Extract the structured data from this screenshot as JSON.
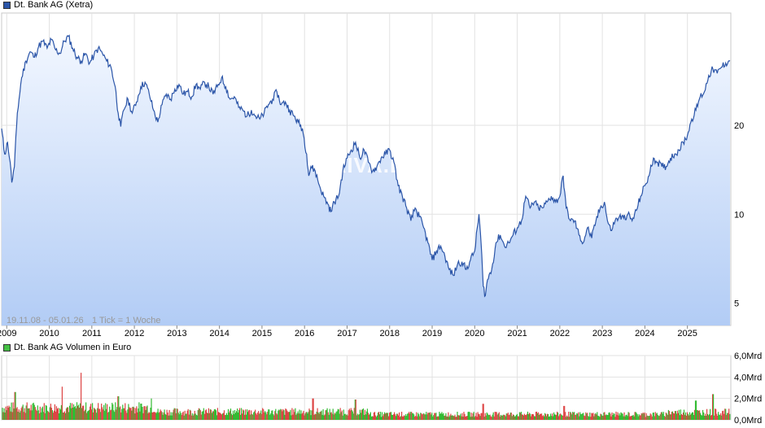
{
  "chart_data": [
    {
      "type": "line",
      "legend_label": "Dt. Bank AG (Xetra)",
      "color": "#2b55a8",
      "fill_top": "#f2f7ff",
      "fill_bottom": "#b2ccf5",
      "scale": "log",
      "ylim": [
        4.2,
        48
      ],
      "y_ticks": [
        {
          "value": 5,
          "label": "5"
        },
        {
          "value": 10,
          "label": "10"
        },
        {
          "value": 20,
          "label": "20"
        }
      ],
      "xlim": [
        2008.88,
        2026.02
      ],
      "x_ticks": [
        "2009",
        "2010",
        "2011",
        "2012",
        "2013",
        "2014",
        "2015",
        "2016",
        "2017",
        "2018",
        "2019",
        "2020",
        "2021",
        "2022",
        "2023",
        "2024",
        "2025"
      ],
      "grid": true,
      "period_note": "19.11.08 - 05.01.26",
      "tick_note": "1 Tick = 1 Woche",
      "watermark": "ARIVA.DE",
      "series": [
        {
          "values": [
            [
              2008.88,
              19.5
            ],
            [
              2008.95,
              16.0
            ],
            [
              2009.02,
              17.5
            ],
            [
              2009.08,
              15.0
            ],
            [
              2009.12,
              12.8
            ],
            [
              2009.18,
              14.5
            ],
            [
              2009.25,
              22.0
            ],
            [
              2009.35,
              29.0
            ],
            [
              2009.45,
              33.0
            ],
            [
              2009.55,
              35.5
            ],
            [
              2009.65,
              34.0
            ],
            [
              2009.75,
              37.0
            ],
            [
              2009.85,
              38.5
            ],
            [
              2009.95,
              36.5
            ],
            [
              2010.05,
              39.0
            ],
            [
              2010.15,
              36.0
            ],
            [
              2010.25,
              35.0
            ],
            [
              2010.35,
              38.5
            ],
            [
              2010.45,
              40.0
            ],
            [
              2010.55,
              36.5
            ],
            [
              2010.65,
              34.0
            ],
            [
              2010.75,
              33.0
            ],
            [
              2010.85,
              35.0
            ],
            [
              2010.95,
              32.5
            ],
            [
              2011.05,
              34.5
            ],
            [
              2011.15,
              36.5
            ],
            [
              2011.25,
              35.0
            ],
            [
              2011.35,
              33.0
            ],
            [
              2011.45,
              31.5
            ],
            [
              2011.55,
              27.0
            ],
            [
              2011.62,
              22.0
            ],
            [
              2011.68,
              19.8
            ],
            [
              2011.75,
              22.5
            ],
            [
              2011.85,
              24.5
            ],
            [
              2011.95,
              22.0
            ],
            [
              2012.05,
              24.0
            ],
            [
              2012.15,
              27.0
            ],
            [
              2012.25,
              28.0
            ],
            [
              2012.35,
              25.5
            ],
            [
              2012.45,
              22.5
            ],
            [
              2012.55,
              20.5
            ],
            [
              2012.65,
              23.5
            ],
            [
              2012.75,
              25.5
            ],
            [
              2012.85,
              24.5
            ],
            [
              2012.95,
              26.5
            ],
            [
              2013.05,
              27.5
            ],
            [
              2013.15,
              25.5
            ],
            [
              2013.25,
              26.0
            ],
            [
              2013.35,
              25.0
            ],
            [
              2013.45,
              27.5
            ],
            [
              2013.55,
              26.5
            ],
            [
              2013.65,
              28.0
            ],
            [
              2013.75,
              27.0
            ],
            [
              2013.85,
              25.5
            ],
            [
              2013.95,
              27.0
            ],
            [
              2014.05,
              29.0
            ],
            [
              2014.15,
              27.0
            ],
            [
              2014.25,
              24.5
            ],
            [
              2014.35,
              25.0
            ],
            [
              2014.45,
              23.0
            ],
            [
              2014.55,
              22.5
            ],
            [
              2014.65,
              21.5
            ],
            [
              2014.75,
              22.5
            ],
            [
              2014.85,
              21.5
            ],
            [
              2014.95,
              21.0
            ],
            [
              2015.05,
              22.0
            ],
            [
              2015.15,
              23.5
            ],
            [
              2015.25,
              24.5
            ],
            [
              2015.35,
              26.0
            ],
            [
              2015.45,
              23.5
            ],
            [
              2015.55,
              24.0
            ],
            [
              2015.65,
              22.5
            ],
            [
              2015.75,
              21.5
            ],
            [
              2015.85,
              20.5
            ],
            [
              2015.95,
              19.5
            ],
            [
              2016.05,
              16.0
            ],
            [
              2016.1,
              13.5
            ],
            [
              2016.15,
              14.5
            ],
            [
              2016.25,
              14.0
            ],
            [
              2016.35,
              12.5
            ],
            [
              2016.45,
              11.5
            ],
            [
              2016.55,
              10.8
            ],
            [
              2016.62,
              10.2
            ],
            [
              2016.7,
              11.0
            ],
            [
              2016.8,
              11.5
            ],
            [
              2016.9,
              14.0
            ],
            [
              2017.0,
              15.5
            ],
            [
              2017.1,
              16.5
            ],
            [
              2017.2,
              17.5
            ],
            [
              2017.3,
              15.5
            ],
            [
              2017.4,
              16.5
            ],
            [
              2017.5,
              15.0
            ],
            [
              2017.6,
              14.0
            ],
            [
              2017.7,
              14.5
            ],
            [
              2017.8,
              15.5
            ],
            [
              2017.9,
              16.0
            ],
            [
              2018.0,
              16.5
            ],
            [
              2018.1,
              15.0
            ],
            [
              2018.2,
              12.5
            ],
            [
              2018.3,
              11.5
            ],
            [
              2018.4,
              10.5
            ],
            [
              2018.5,
              9.5
            ],
            [
              2018.6,
              10.5
            ],
            [
              2018.7,
              9.8
            ],
            [
              2018.8,
              9.0
            ],
            [
              2018.9,
              8.0
            ],
            [
              2019.0,
              7.0
            ],
            [
              2019.1,
              7.5
            ],
            [
              2019.2,
              7.8
            ],
            [
              2019.3,
              7.2
            ],
            [
              2019.4,
              6.5
            ],
            [
              2019.5,
              6.2
            ],
            [
              2019.6,
              6.8
            ],
            [
              2019.7,
              6.9
            ],
            [
              2019.8,
              6.5
            ],
            [
              2019.9,
              7.0
            ],
            [
              2020.0,
              7.5
            ],
            [
              2020.1,
              10.0
            ],
            [
              2020.15,
              8.0
            ],
            [
              2020.2,
              5.7
            ],
            [
              2020.25,
              5.3
            ],
            [
              2020.3,
              6.0
            ],
            [
              2020.4,
              6.5
            ],
            [
              2020.5,
              8.0
            ],
            [
              2020.6,
              8.5
            ],
            [
              2020.7,
              7.8
            ],
            [
              2020.8,
              8.0
            ],
            [
              2020.9,
              8.5
            ],
            [
              2021.0,
              9.0
            ],
            [
              2021.1,
              9.5
            ],
            [
              2021.2,
              11.5
            ],
            [
              2021.3,
              10.5
            ],
            [
              2021.4,
              11.0
            ],
            [
              2021.5,
              10.5
            ],
            [
              2021.6,
              10.5
            ],
            [
              2021.7,
              11.0
            ],
            [
              2021.8,
              11.5
            ],
            [
              2021.9,
              11.0
            ],
            [
              2022.0,
              11.5
            ],
            [
              2022.08,
              13.5
            ],
            [
              2022.15,
              10.5
            ],
            [
              2022.25,
              9.5
            ],
            [
              2022.35,
              9.5
            ],
            [
              2022.45,
              8.5
            ],
            [
              2022.55,
              8.0
            ],
            [
              2022.65,
              9.0
            ],
            [
              2022.75,
              8.3
            ],
            [
              2022.85,
              9.5
            ],
            [
              2022.95,
              10.5
            ],
            [
              2023.05,
              11.0
            ],
            [
              2023.12,
              9.5
            ],
            [
              2023.2,
              8.8
            ],
            [
              2023.3,
              9.5
            ],
            [
              2023.4,
              9.8
            ],
            [
              2023.5,
              9.7
            ],
            [
              2023.6,
              10.0
            ],
            [
              2023.7,
              9.5
            ],
            [
              2023.8,
              10.3
            ],
            [
              2023.9,
              11.5
            ],
            [
              2024.0,
              12.5
            ],
            [
              2024.1,
              13.5
            ],
            [
              2024.2,
              15.5
            ],
            [
              2024.3,
              15.0
            ],
            [
              2024.4,
              14.5
            ],
            [
              2024.5,
              14.5
            ],
            [
              2024.6,
              15.5
            ],
            [
              2024.7,
              16.0
            ],
            [
              2024.8,
              16.5
            ],
            [
              2024.9,
              17.5
            ],
            [
              2025.0,
              18.5
            ],
            [
              2025.1,
              21.0
            ],
            [
              2025.2,
              22.5
            ],
            [
              2025.3,
              25.0
            ],
            [
              2025.4,
              26.0
            ],
            [
              2025.5,
              29.5
            ],
            [
              2025.6,
              31.0
            ],
            [
              2025.7,
              30.0
            ],
            [
              2025.8,
              31.5
            ],
            [
              2025.9,
              32.5
            ],
            [
              2026.0,
              33.0
            ]
          ]
        }
      ]
    },
    {
      "type": "bar",
      "legend_label": "Dt. Bank AG Volumen in Euro",
      "up_color": "#33bb33",
      "down_color": "#dd4444",
      "ylim": [
        0,
        6.0
      ],
      "y_ticks": [
        {
          "value": 0,
          "label": "0,0Mrd"
        },
        {
          "value": 2,
          "label": "2,0Mrd"
        },
        {
          "value": 4,
          "label": "4,0Mrd"
        },
        {
          "value": 6,
          "label": "6,0Mrd"
        }
      ],
      "xlim": [
        2008.88,
        2026.02
      ],
      "grid": true,
      "peaks": [
        {
          "x": 2009.2,
          "value": 2.6
        },
        {
          "x": 2010.3,
          "value": 3.1
        },
        {
          "x": 2010.75,
          "value": 4.4
        },
        {
          "x": 2011.62,
          "value": 2.2
        },
        {
          "x": 2012.4,
          "value": 2.0
        },
        {
          "x": 2016.2,
          "value": 2.0
        },
        {
          "x": 2017.2,
          "value": 1.9
        },
        {
          "x": 2020.2,
          "value": 1.5
        },
        {
          "x": 2022.1,
          "value": 1.3
        },
        {
          "x": 2025.2,
          "value": 1.8
        },
        {
          "x": 2025.6,
          "value": 2.4
        }
      ]
    }
  ]
}
